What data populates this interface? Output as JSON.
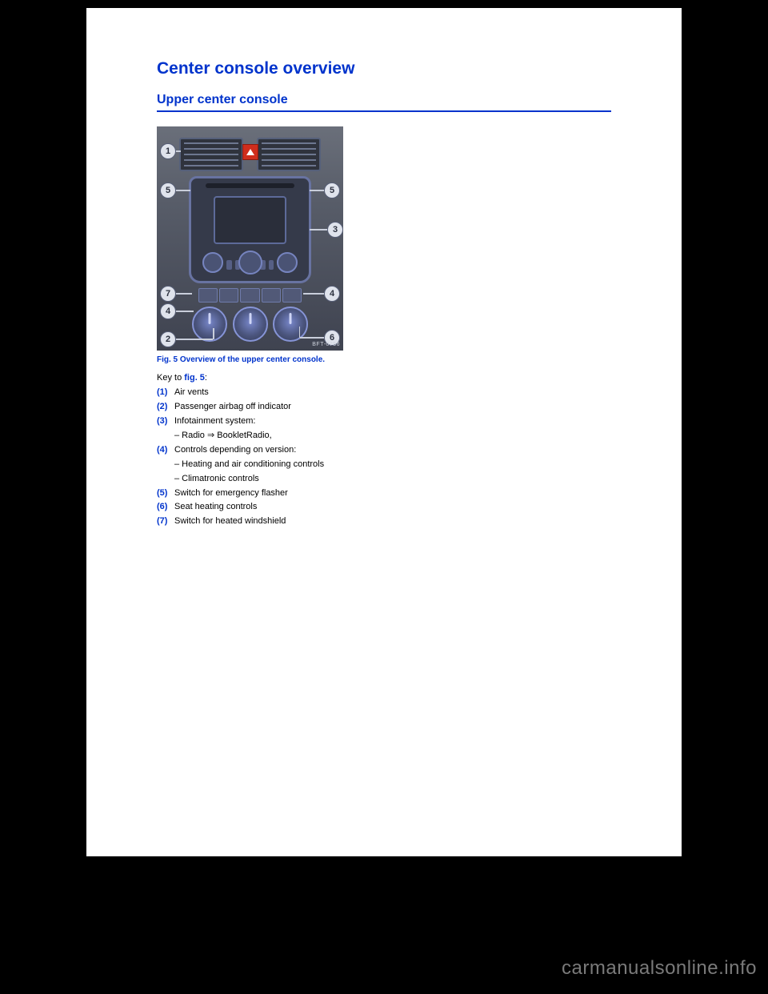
{
  "title": "Center console overview",
  "section": "Upper center console",
  "caption": "Fig. 5 Overview of the upper center console.",
  "figref_label": "fig. 5",
  "intro_prefix": "Key to ",
  "intro_suffix": ":",
  "badge": "BFT-0756",
  "callouts": {
    "c1": "1",
    "c2": "2",
    "c3": "3",
    "c4": "4",
    "c5": "5",
    "c6": "6",
    "c7": "7"
  },
  "items": [
    {
      "num": "(1)",
      "text": "Air vents"
    },
    {
      "num": "(2)",
      "text": "Passenger airbag off indicator"
    },
    {
      "num": "(3)",
      "text": "Infotainment system:"
    },
    {
      "num": "",
      "text": "– Radio ⇒ BookletRadio,",
      "indent": true
    },
    {
      "num": "(4)",
      "text": "Controls depending on version:"
    },
    {
      "num": "",
      "text": "– Heating and air conditioning controls",
      "indent": true
    },
    {
      "num": "",
      "text": "– Climatronic controls",
      "indent": true
    },
    {
      "num": "(5)",
      "text": "Switch for emergency flasher"
    },
    {
      "num": "(6)",
      "text": "Seat heating controls"
    },
    {
      "num": "(7)",
      "text": "Switch for heated windshield"
    }
  ],
  "watermark": "carmanualsonline.info"
}
